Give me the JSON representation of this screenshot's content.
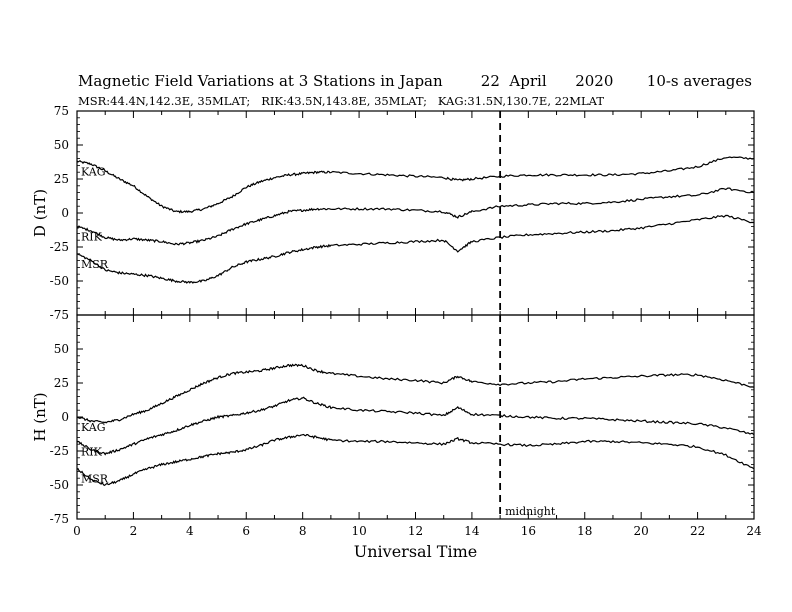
{
  "header": {
    "title": "Magnetic Field Variations at 3 Stations in Japan        22  April      2020       10-s averages",
    "subtitle": "MSR:44.4N,142.3E, 35MLAT;   RIK:43.5N,143.8E, 35MLAT;   KAG:31.5N,130.7E, 22MLAT"
  },
  "annotation": {
    "midnight_label": "midnight",
    "midnight_ut": 15
  },
  "chart_data": [
    {
      "type": "line",
      "panel": "top",
      "ylabel": "D (nT)",
      "xlim": [
        0,
        24
      ],
      "ylim": [
        -75,
        75
      ],
      "yticks": [
        -75,
        -50,
        -25,
        0,
        25,
        50,
        75
      ],
      "series": [
        {
          "name": "KAG",
          "x": [
            0,
            0.5,
            1,
            1.5,
            2,
            2.5,
            3,
            3.5,
            4,
            4.5,
            5,
            5.5,
            6,
            6.5,
            7,
            7.5,
            8,
            8.5,
            9,
            10,
            11,
            12,
            13,
            13.5,
            14,
            15,
            16,
            17,
            18,
            19,
            20,
            21,
            22,
            23,
            24
          ],
          "y": [
            38,
            36,
            31,
            25,
            20,
            12,
            5,
            1,
            1,
            3,
            7,
            12,
            19,
            23,
            26,
            28,
            29,
            30,
            30,
            29,
            28,
            27,
            26,
            24,
            25,
            27,
            28,
            28,
            28,
            28,
            29,
            31,
            34,
            41,
            40
          ]
        },
        {
          "name": "RIK",
          "x": [
            0,
            0.5,
            1,
            1.5,
            2,
            2.5,
            3,
            3.5,
            4,
            4.5,
            5,
            5.5,
            6,
            6.5,
            7,
            7.5,
            8,
            8.5,
            9,
            10,
            11,
            12,
            13,
            13.5,
            14,
            15,
            16,
            17,
            18,
            19,
            20,
            21,
            22,
            23,
            24
          ],
          "y": [
            -10,
            -13,
            -18,
            -20,
            -19,
            -20,
            -21,
            -23,
            -22,
            -20,
            -17,
            -12,
            -8,
            -5,
            -2,
            1,
            2,
            3,
            3,
            3,
            3,
            2,
            1,
            -3,
            1,
            5,
            6,
            7,
            7,
            8,
            10,
            12,
            13,
            18,
            15
          ]
        },
        {
          "name": "MSR",
          "x": [
            0,
            0.5,
            1,
            1.5,
            2,
            2.5,
            3,
            3.5,
            4,
            4.5,
            5,
            5.5,
            6,
            6.5,
            7,
            7.5,
            8,
            8.5,
            9,
            10,
            11,
            12,
            13,
            13.5,
            14,
            15,
            16,
            17,
            18,
            19,
            20,
            21,
            22,
            23,
            24
          ],
          "y": [
            -30,
            -35,
            -42,
            -44,
            -45,
            -46,
            -48,
            -50,
            -51,
            -50,
            -46,
            -40,
            -36,
            -34,
            -32,
            -29,
            -27,
            -25,
            -24,
            -23,
            -22,
            -21,
            -20,
            -28,
            -21,
            -18,
            -16,
            -15,
            -14,
            -13,
            -11,
            -8,
            -5,
            -2,
            -7
          ]
        }
      ]
    },
    {
      "type": "line",
      "panel": "bottom",
      "ylabel": "H (nT)",
      "xlabel": "Universal Time",
      "xlim": [
        0,
        24
      ],
      "ylim": [
        -75,
        75
      ],
      "xticks": [
        0,
        2,
        4,
        6,
        8,
        10,
        12,
        14,
        16,
        18,
        20,
        22,
        24
      ],
      "yticks": [
        -75,
        -50,
        -25,
        0,
        25,
        50
      ],
      "series": [
        {
          "name": "KAG",
          "x": [
            0,
            0.5,
            1,
            1.5,
            2,
            2.5,
            3,
            3.5,
            4,
            4.5,
            5,
            5.5,
            6,
            6.5,
            7,
            7.5,
            8,
            8.5,
            9,
            10,
            11,
            12,
            13,
            13.5,
            14,
            15,
            16,
            17,
            18,
            19,
            20,
            21,
            22,
            23,
            24
          ],
          "y": [
            0,
            -3,
            -4,
            -2,
            2,
            5,
            10,
            15,
            20,
            25,
            29,
            32,
            33,
            34,
            36,
            38,
            38,
            34,
            32,
            30,
            28,
            27,
            25,
            30,
            26,
            24,
            25,
            26,
            28,
            29,
            30,
            31,
            31,
            27,
            22
          ]
        },
        {
          "name": "RIK",
          "x": [
            0,
            0.5,
            1,
            1.5,
            2,
            2.5,
            3,
            3.5,
            4,
            4.5,
            5,
            5.5,
            6,
            6.5,
            7,
            7.5,
            8,
            8.5,
            9,
            10,
            11,
            12,
            13,
            13.5,
            14,
            15,
            16,
            17,
            18,
            19,
            20,
            21,
            22,
            23,
            24
          ],
          "y": [
            -18,
            -24,
            -27,
            -24,
            -20,
            -16,
            -13,
            -10,
            -6,
            -3,
            0,
            1,
            3,
            5,
            8,
            12,
            14,
            10,
            7,
            5,
            4,
            3,
            1,
            7,
            2,
            1,
            0,
            -1,
            -1,
            -2,
            -3,
            -4,
            -5,
            -8,
            -13
          ]
        },
        {
          "name": "MSR",
          "x": [
            0,
            0.5,
            1,
            1.5,
            2,
            2.5,
            3,
            3.5,
            4,
            4.5,
            5,
            5.5,
            6,
            6.5,
            7,
            7.5,
            8,
            8.5,
            9,
            10,
            11,
            12,
            13,
            13.5,
            14,
            15,
            16,
            17,
            18,
            19,
            20,
            21,
            22,
            23,
            24
          ],
          "y": [
            -38,
            -46,
            -50,
            -47,
            -42,
            -38,
            -35,
            -33,
            -31,
            -29,
            -27,
            -26,
            -24,
            -21,
            -17,
            -15,
            -13,
            -15,
            -17,
            -18,
            -18,
            -19,
            -20,
            -16,
            -19,
            -20,
            -21,
            -20,
            -18,
            -18,
            -19,
            -20,
            -22,
            -28,
            -38
          ]
        }
      ]
    }
  ]
}
